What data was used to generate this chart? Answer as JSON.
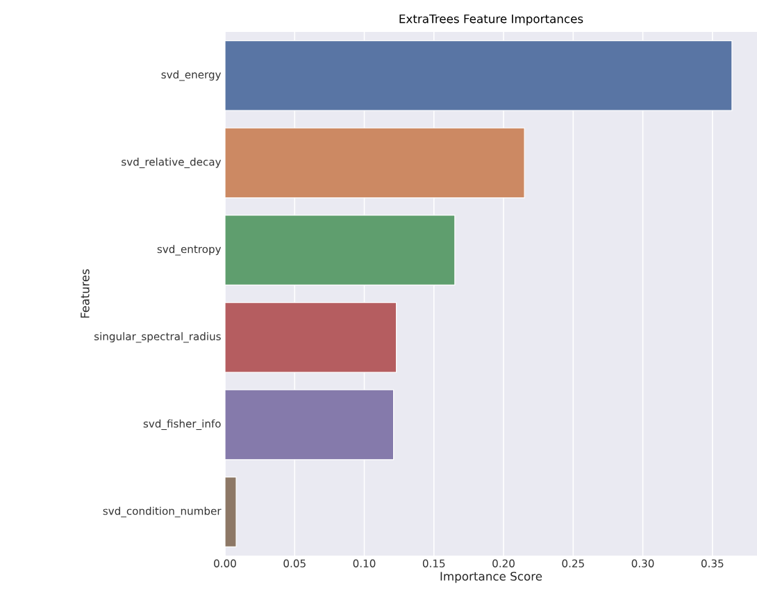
{
  "chart_data": {
    "type": "bar",
    "orientation": "horizontal",
    "title": "ExtraTrees Feature Importances",
    "xlabel": "Importance Score",
    "ylabel": "Features",
    "categories": [
      "svd_energy",
      "svd_relative_decay",
      "svd_entropy",
      "singular_spectral_radius",
      "svd_fisher_info",
      "svd_condition_number"
    ],
    "values": [
      0.364,
      0.215,
      0.165,
      0.123,
      0.121,
      0.008
    ],
    "colors": [
      "#5975a4",
      "#cc8963",
      "#5f9e6e",
      "#b55d60",
      "#857aab",
      "#8d7866"
    ],
    "xlim": [
      0,
      0.382
    ],
    "xticks": [
      {
        "value": 0,
        "label": "0.00"
      },
      0.05,
      {
        "value": 0.1,
        "label": "0.10"
      },
      0.15,
      {
        "value": 0.2,
        "label": "0.20"
      },
      0.25,
      {
        "value": 0.3,
        "label": "0.30"
      },
      0.35
    ],
    "grid": "x"
  }
}
